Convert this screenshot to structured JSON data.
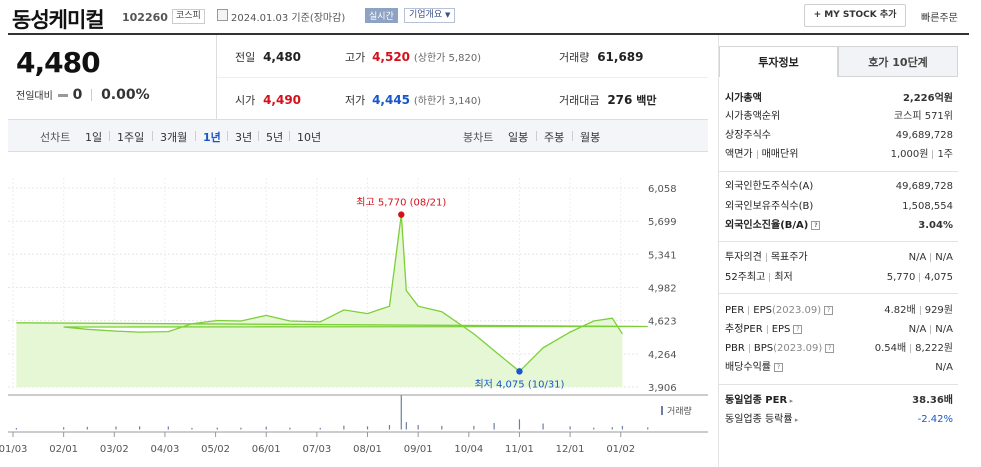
{
  "header": {
    "stock_name": "동성케미컬",
    "stock_code": "102260",
    "market": "코스피",
    "date_text": "2024.01.03  기준(장마감)",
    "realtime_label": "실시간",
    "company_info_label": "기업개요",
    "mystock_label": "+ MY STOCK 추가",
    "quick_order_label": "빠른주문"
  },
  "price": {
    "current": "4,480",
    "change_label": "전일대비",
    "change_value": "0",
    "change_rate": "0.00%",
    "prev_close_label": "전일",
    "prev_close": "4,480",
    "high_label": "고가",
    "high": "4,520",
    "upper_limit": "(상한가 5,820)",
    "volume_label": "거래량",
    "volume": "61,689",
    "open_label": "시가",
    "open": "4,490",
    "low_label": "저가",
    "low": "4,445",
    "lower_limit": "(하한가 3,140)",
    "trade_value_label": "거래대금",
    "trade_value": "276",
    "trade_value_unit": "백만"
  },
  "period_bar": {
    "line_chart_label": "선차트",
    "line_periods": [
      "1일",
      "1주일",
      "3개월",
      "1년",
      "3년",
      "5년",
      "10년"
    ],
    "active_period": "1년",
    "candle_chart_label": "봉차트",
    "candle_periods": [
      "일봉",
      "주봉",
      "월봉"
    ]
  },
  "chart_data": {
    "type": "area",
    "title": "",
    "x_labels": [
      "01/03",
      "02/01",
      "03/02",
      "04/03",
      "05/02",
      "06/01",
      "07/03",
      "08/01",
      "09/01",
      "10/04",
      "11/01",
      "12/01",
      "01/02"
    ],
    "y_ticks": [
      3906,
      4264,
      4623,
      4982,
      5341,
      5699,
      6058
    ],
    "ylim": [
      3906,
      6058
    ],
    "grid": true,
    "points": [
      [
        "01/03",
        4600
      ],
      [
        "01/17",
        4560
      ],
      [
        "02/01",
        4555
      ],
      [
        "02/15",
        4530
      ],
      [
        "03/02",
        4510
      ],
      [
        "03/16",
        4500
      ],
      [
        "04/03",
        4505
      ],
      [
        "04/17",
        4590
      ],
      [
        "05/02",
        4625
      ],
      [
        "05/16",
        4620
      ],
      [
        "06/01",
        4680
      ],
      [
        "06/15",
        4620
      ],
      [
        "07/03",
        4610
      ],
      [
        "07/17",
        4740
      ],
      [
        "08/01",
        4700
      ],
      [
        "08/14",
        4780
      ],
      [
        "08/21",
        5770
      ],
      [
        "08/24",
        4950
      ],
      [
        "09/01",
        4780
      ],
      [
        "09/15",
        4720
      ],
      [
        "10/04",
        4480
      ],
      [
        "10/16",
        4300
      ],
      [
        "10/31",
        4075
      ],
      [
        "11/15",
        4330
      ],
      [
        "12/01",
        4500
      ],
      [
        "12/15",
        4620
      ],
      [
        "12/26",
        4650
      ],
      [
        "01/02",
        4480
      ]
    ],
    "annotations": {
      "high_label": "최고 5,770 (08/21)",
      "low_label": "최저 4,075 (10/31)"
    },
    "volume_label": "거래량",
    "line_color": "#7ccf38",
    "fill_color": "#e6f7d6",
    "high_marker_color": "#d3101b",
    "low_marker_color": "#1757c9"
  },
  "right_panel": {
    "tabs": [
      "투자정보",
      "호가 10단계"
    ],
    "market_cap_label": "시가총액",
    "market_cap": "2,226억원",
    "rank_label": "시가총액순위",
    "rank": "코스피 571위",
    "shares_label": "상장주식수",
    "shares": "49,689,728",
    "par_label": "액면가",
    "trade_unit_label": "매매단위",
    "par_value": "1,000원",
    "trade_unit": "1주",
    "foreign_limit_label": "외국인한도주식수(A)",
    "foreign_limit": "49,689,728",
    "foreign_hold_label": "외국인보유주식수(B)",
    "foreign_hold": "1,508,554",
    "foreign_ratio_label": "외국인소진율(B/A)",
    "foreign_ratio": "3.04%",
    "opinion_label": "투자의견",
    "target_label": "목표주가",
    "opinion": "N/A",
    "target": "N/A",
    "week52_label": "52주최고",
    "week52_low_label": "최저",
    "week52_high": "5,770",
    "week52_low": "4,075",
    "per_label": "PER",
    "eps_label": "EPS",
    "per_period": "(2023.09)",
    "per": "4.82배",
    "eps": "929원",
    "est_per_label": "추정PER",
    "est_eps_label": "EPS",
    "est_per": "N/A",
    "est_eps": "N/A",
    "pbr_label": "PBR",
    "bps_label": "BPS",
    "pbr_period": "(2023.09)",
    "pbr": "0.54배",
    "bps": "8,222원",
    "dividend_label": "배당수익률",
    "dividend": "N/A",
    "sector_per_label": "동일업종 PER",
    "sector_per": "38.36배",
    "sector_rate_label": "동일업종 등락률",
    "sector_rate": "-2.42%"
  }
}
